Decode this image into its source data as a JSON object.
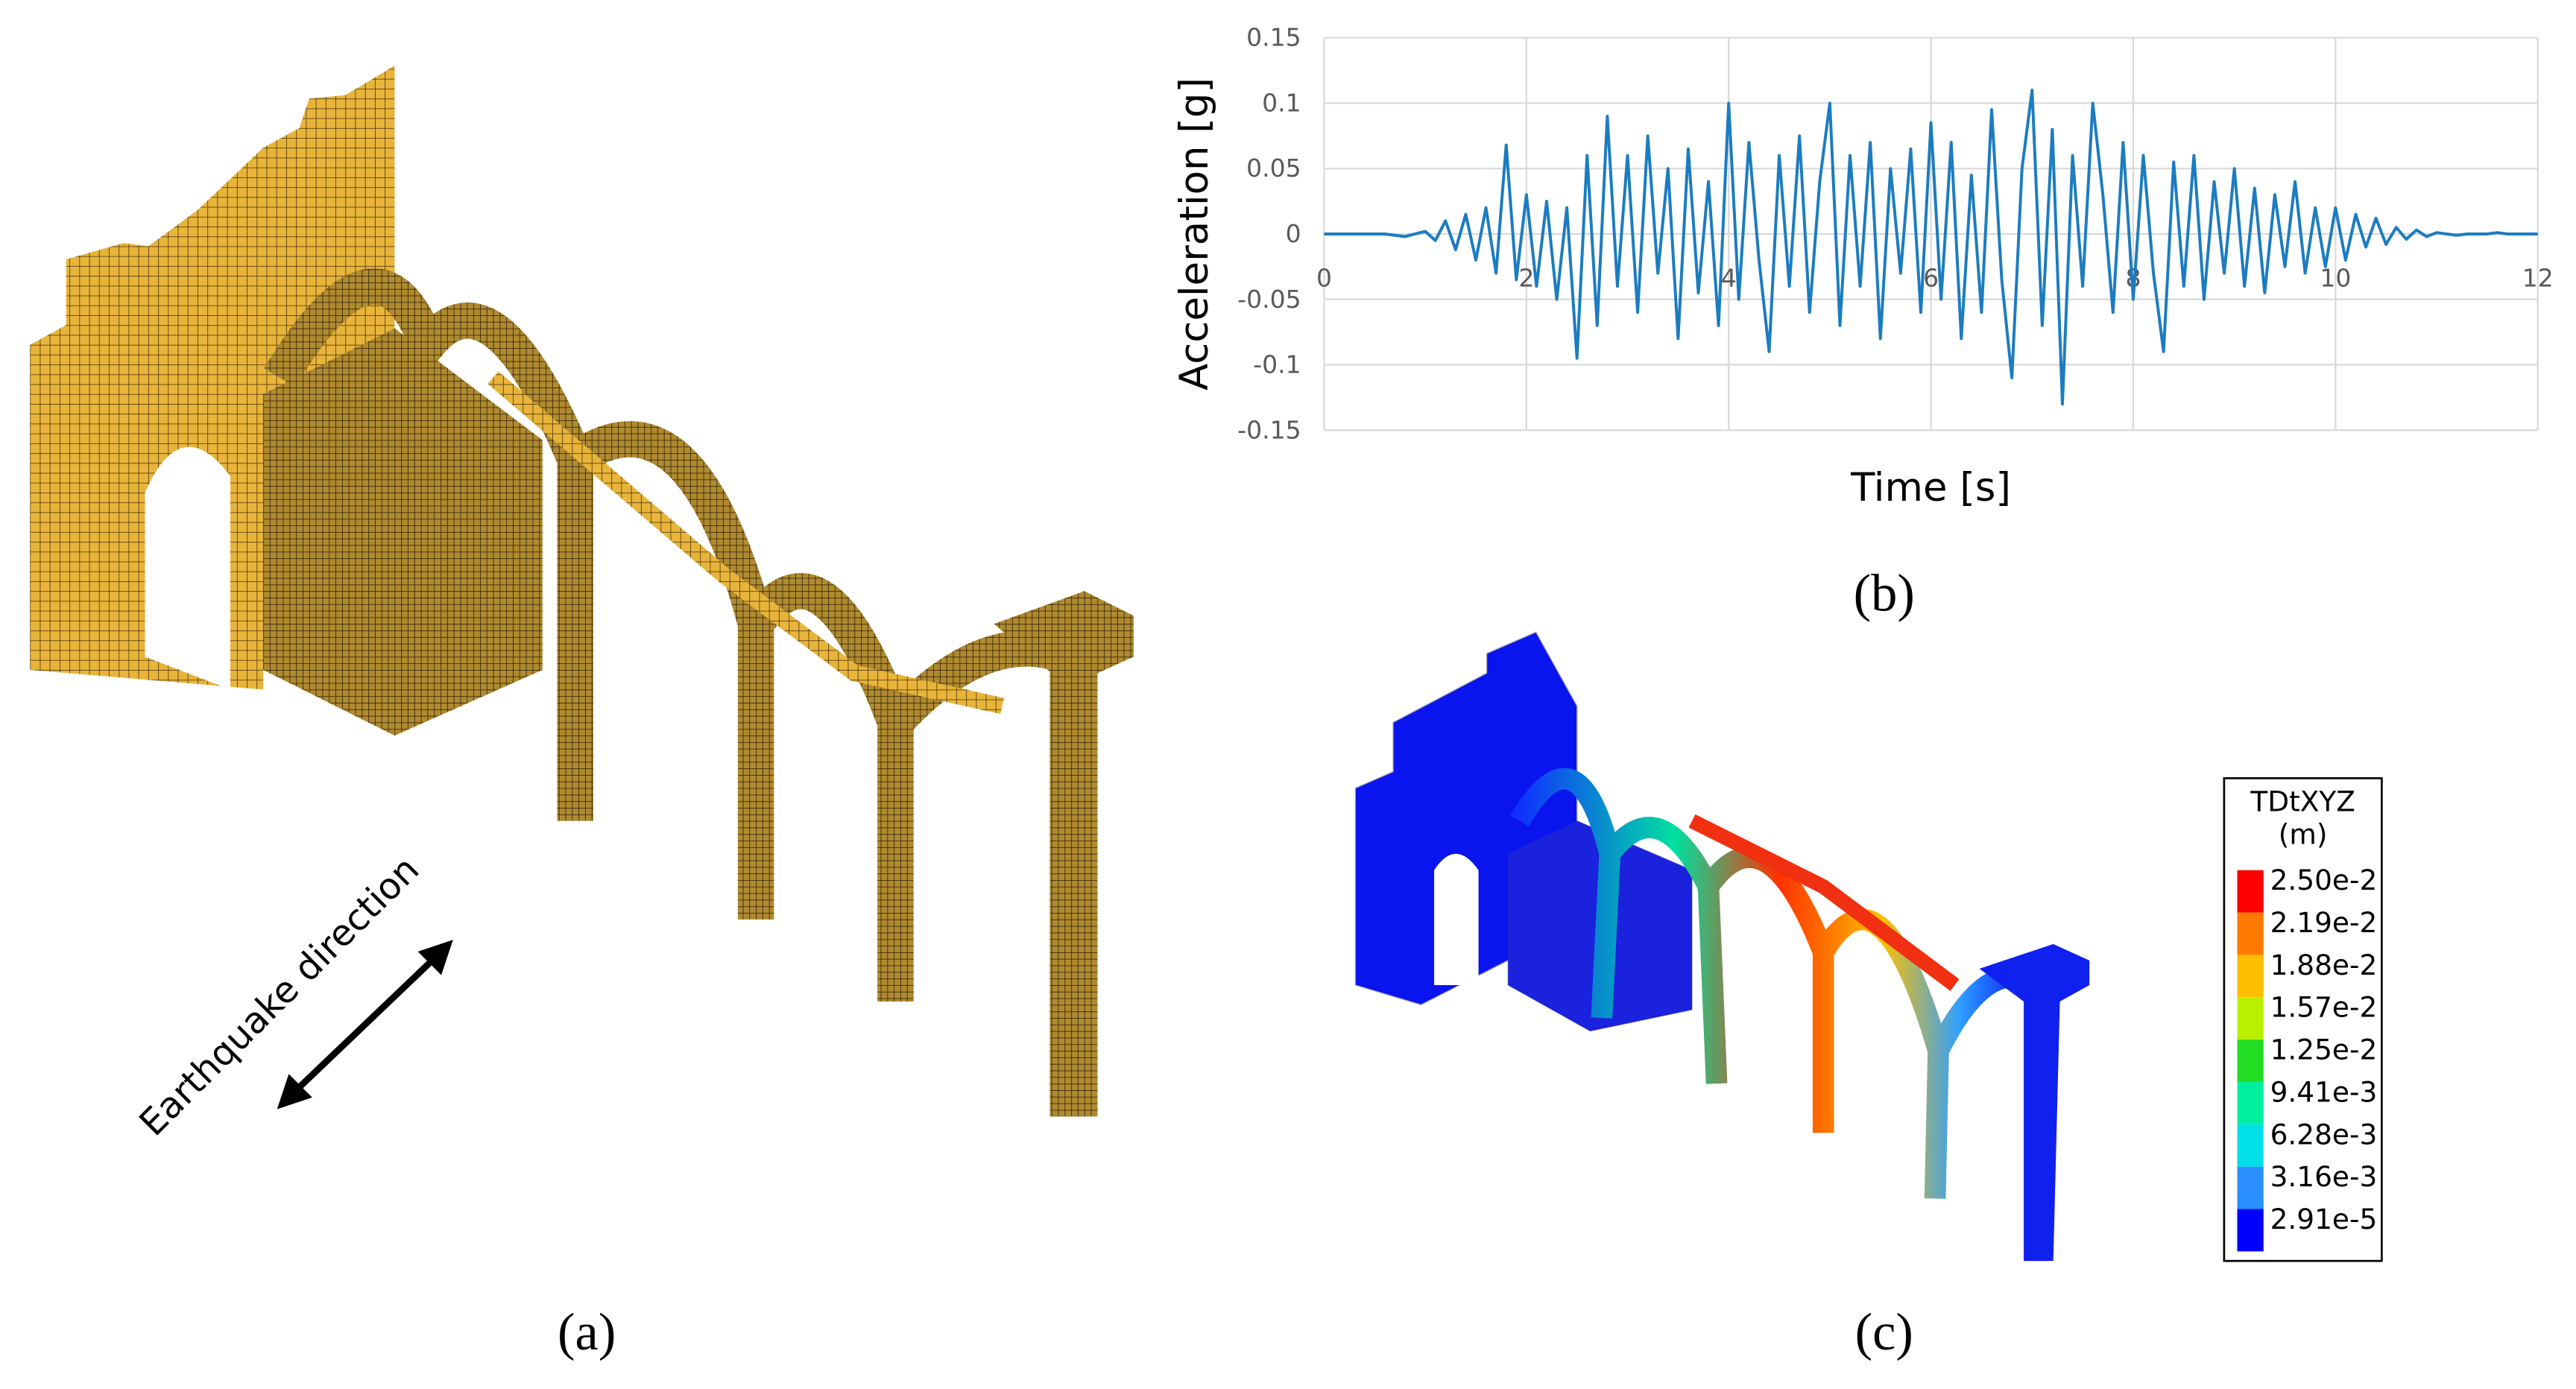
{
  "chart_data": {
    "type": "line",
    "x_label": "Time [s]",
    "y_label": "Acceleration [g]",
    "panel_label": "(b)",
    "x": [
      0,
      0.1,
      0.2,
      0.3,
      0.4,
      0.5,
      0.6,
      0.7,
      0.8,
      0.9,
      1,
      1.1,
      1.2,
      1.3,
      1.4,
      1.5,
      1.6,
      1.7,
      1.8,
      1.9,
      2,
      2.1,
      2.2,
      2.3,
      2.4,
      2.5,
      2.6,
      2.7,
      2.8,
      2.9,
      3,
      3.1,
      3.2,
      3.3,
      3.4,
      3.5,
      3.6,
      3.7,
      3.8,
      3.9,
      4,
      4.1,
      4.2,
      4.3,
      4.4,
      4.5,
      4.6,
      4.7,
      4.8,
      4.9,
      5,
      5.1,
      5.2,
      5.3,
      5.4,
      5.5,
      5.6,
      5.7,
      5.8,
      5.9,
      6,
      6.1,
      6.2,
      6.3,
      6.4,
      6.5,
      6.6,
      6.7,
      6.8,
      6.9,
      7,
      7.1,
      7.2,
      7.3,
      7.4,
      7.5,
      7.6,
      7.7,
      7.8,
      7.9,
      8,
      8.1,
      8.2,
      8.3,
      8.4,
      8.5,
      8.6,
      8.7,
      8.8,
      8.9,
      9,
      9.1,
      9.2,
      9.3,
      9.4,
      9.5,
      9.6,
      9.7,
      9.8,
      9.9,
      10,
      10.1,
      10.2,
      10.3,
      10.4,
      10.5,
      10.6,
      10.7,
      10.8,
      10.9,
      11,
      11.1,
      11.2,
      11.3,
      11.4,
      11.5,
      11.6,
      11.7,
      11.8,
      11.9,
      12
    ],
    "series": [
      {
        "color": "#1c7cc0",
        "values": [
          0,
          0,
          0,
          0,
          0,
          0,
          0,
          -0.001,
          -0.002,
          0,
          0.002,
          -0.005,
          0.01,
          -0.012,
          0.015,
          -0.02,
          0.02,
          -0.03,
          0.068,
          -0.035,
          0.03,
          -0.04,
          0.025,
          -0.05,
          0.02,
          -0.095,
          0.06,
          -0.07,
          0.09,
          -0.04,
          0.06,
          -0.06,
          0.075,
          -0.03,
          0.05,
          -0.08,
          0.065,
          -0.045,
          0.04,
          -0.07,
          0.1,
          -0.05,
          0.07,
          -0.02,
          -0.09,
          0.06,
          -0.04,
          0.075,
          -0.06,
          0.04,
          0.1,
          -0.07,
          0.06,
          -0.04,
          0.07,
          -0.08,
          0.05,
          -0.03,
          0.065,
          -0.06,
          0.085,
          -0.05,
          0.07,
          -0.08,
          0.045,
          -0.06,
          0.095,
          -0.035,
          -0.11,
          0.05,
          0.11,
          -0.07,
          0.08,
          -0.13,
          0.06,
          -0.04,
          0.1,
          0.03,
          -0.06,
          0.07,
          -0.05,
          0.06,
          -0.03,
          -0.09,
          0.055,
          -0.04,
          0.06,
          -0.05,
          0.04,
          -0.03,
          0.05,
          -0.04,
          0.035,
          -0.045,
          0.03,
          -0.025,
          0.04,
          -0.03,
          0.02,
          -0.025,
          0.02,
          -0.02,
          0.015,
          -0.01,
          0.012,
          -0.008,
          0.005,
          -0.004,
          0.003,
          -0.002,
          0.001,
          0,
          -0.001,
          0,
          0,
          0,
          0.001,
          0,
          0,
          0,
          0
        ]
      }
    ],
    "xlim": [
      0,
      12
    ],
    "xticks": [
      0,
      2,
      4,
      6,
      8,
      10,
      12
    ],
    "ylim": [
      -0.15,
      0.15
    ],
    "yticks": [
      0.15,
      0.1,
      0.05,
      0,
      -0.05,
      -0.1,
      -0.15
    ],
    "grid": true
  },
  "panel_a": {
    "label": "(a)",
    "annotation": "Earthquake direction"
  },
  "panel_c": {
    "label": "(c)",
    "legend": {
      "title": "TDtXYZ",
      "unit": "(m)",
      "entries": [
        {
          "label": "2.50e-2",
          "color": "#ff0000"
        },
        {
          "label": "2.19e-2",
          "color": "#ff7a00"
        },
        {
          "label": "1.88e-2",
          "color": "#ffbf00"
        },
        {
          "label": "1.57e-2",
          "color": "#b8f000"
        },
        {
          "label": "1.25e-2",
          "color": "#22dd22"
        },
        {
          "label": "9.41e-3",
          "color": "#00f0a0"
        },
        {
          "label": "6.28e-3",
          "color": "#00e0e8"
        },
        {
          "label": "3.16e-3",
          "color": "#2a90ff"
        },
        {
          "label": "2.91e-5",
          "color": "#0000ff"
        }
      ]
    }
  }
}
